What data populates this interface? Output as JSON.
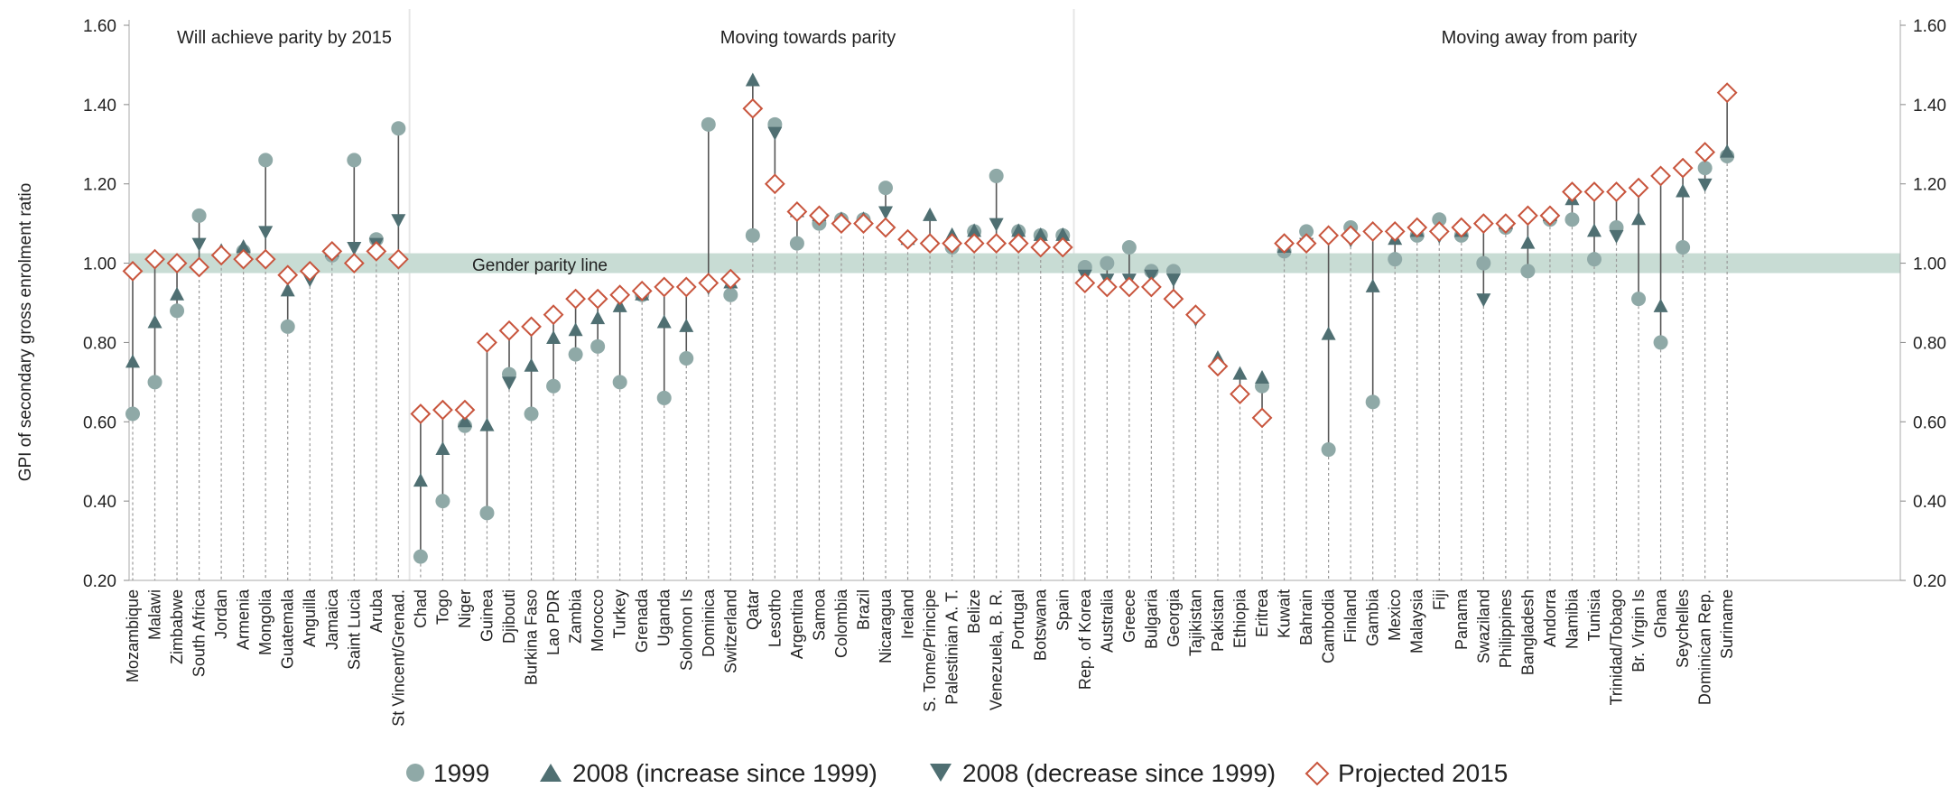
{
  "chart_data": {
    "type": "scatter",
    "ylabel": "GPI of secondary gross enrolment ratio",
    "ylim": [
      0.2,
      1.6
    ],
    "yticks": [
      "0.20",
      "0.40",
      "0.60",
      "0.80",
      "1.00",
      "1.20",
      "1.40",
      "1.60"
    ],
    "gender_parity_line_label": "Gender parity line",
    "parity_band": [
      0.975,
      1.025
    ],
    "legend": {
      "y1999": "1999",
      "inc2008": "2008 (increase since 1999)",
      "dec2008": "2008 (decrease since 1999)",
      "proj2015": "Projected 2015"
    },
    "colors": {
      "y1999": "#8fa9a7",
      "y2008": "#4f6f72",
      "proj2015": "#c8553d",
      "band": "#c8dcd4",
      "stem": "#555555",
      "dotted": "#999999"
    },
    "groups": [
      {
        "title": "Will achieve parity by 2015",
        "countries": [
          {
            "name": "Mozambique",
            "y1999": 0.62,
            "y2008": 0.75,
            "y2015": 0.98
          },
          {
            "name": "Malawi",
            "y1999": 0.7,
            "y2008": 0.85,
            "y2015": 1.01
          },
          {
            "name": "Zimbabwe",
            "y1999": 0.88,
            "y2008": 0.92,
            "y2015": 1.0
          },
          {
            "name": "South Africa",
            "y1999": 1.12,
            "y2008": 1.05,
            "y2015": 0.99
          },
          {
            "name": "Jordan",
            "y1999": 1.02,
            "y2008": 1.03,
            "y2015": 1.02
          },
          {
            "name": "Armenia",
            "y1999": 1.03,
            "y2008": 1.04,
            "y2015": 1.01
          },
          {
            "name": "Mongolia",
            "y1999": 1.26,
            "y2008": 1.08,
            "y2015": 1.01
          },
          {
            "name": "Guatemala",
            "y1999": 0.84,
            "y2008": 0.93,
            "y2015": 0.97
          },
          {
            "name": "Anguilla",
            "y1999": 0.98,
            "y2008": 0.96,
            "y2015": 0.98
          },
          {
            "name": "Jamaica",
            "y1999": 1.02,
            "y2008": 1.03,
            "y2015": 1.03
          },
          {
            "name": "Saint Lucia",
            "y1999": 1.26,
            "y2008": 1.04,
            "y2015": 1.0
          },
          {
            "name": "Aruba",
            "y1999": 1.06,
            "y2008": 1.05,
            "y2015": 1.03
          },
          {
            "name": "St Vincent/Grenad.",
            "y1999": 1.34,
            "y2008": 1.11,
            "y2015": 1.01
          }
        ]
      },
      {
        "title": "Moving towards parity",
        "countries": [
          {
            "name": "Chad",
            "y1999": 0.26,
            "y2008": 0.45,
            "y2015": 0.62
          },
          {
            "name": "Togo",
            "y1999": 0.4,
            "y2008": 0.53,
            "y2015": 0.63
          },
          {
            "name": "Niger",
            "y1999": 0.59,
            "y2008": 0.6,
            "y2015": 0.63
          },
          {
            "name": "Guinea",
            "y1999": 0.37,
            "y2008": 0.59,
            "y2015": 0.8
          },
          {
            "name": "Djibouti",
            "y1999": 0.72,
            "y2008": 0.7,
            "y2015": 0.83
          },
          {
            "name": "Burkina Faso",
            "y1999": 0.62,
            "y2008": 0.74,
            "y2015": 0.84
          },
          {
            "name": "Lao PDR",
            "y1999": 0.69,
            "y2008": 0.81,
            "y2015": 0.87
          },
          {
            "name": "Zambia",
            "y1999": 0.77,
            "y2008": 0.83,
            "y2015": 0.91
          },
          {
            "name": "Morocco",
            "y1999": 0.79,
            "y2008": 0.86,
            "y2015": 0.91
          },
          {
            "name": "Turkey",
            "y1999": 0.7,
            "y2008": 0.89,
            "y2015": 0.92
          },
          {
            "name": "Grenada",
            "y1999": 0.92,
            "y2008": 0.92,
            "y2015": 0.93
          },
          {
            "name": "Uganda",
            "y1999": 0.66,
            "y2008": 0.85,
            "y2015": 0.94
          },
          {
            "name": "Solomon Is",
            "y1999": 0.76,
            "y2008": 0.84,
            "y2015": 0.94
          },
          {
            "name": "Dominica",
            "y1999": 1.35,
            "y2008": 0.94,
            "y2015": 0.95
          },
          {
            "name": "Switzerland",
            "y1999": 0.92,
            "y2008": 0.95,
            "y2015": 0.96
          },
          {
            "name": "Qatar",
            "y1999": 1.07,
            "y2008": 1.46,
            "y2015": 1.39
          },
          {
            "name": "Lesotho",
            "y1999": 1.35,
            "y2008": 1.33,
            "y2015": 1.2
          },
          {
            "name": "Argentina",
            "y1999": 1.05,
            "y2008": 1.13,
            "y2015": 1.13
          },
          {
            "name": "Samoa",
            "y1999": 1.1,
            "y2008": 1.12,
            "y2015": 1.12
          },
          {
            "name": "Colombia",
            "y1999": 1.11,
            "y2008": 1.11,
            "y2015": 1.1
          },
          {
            "name": "Brazil",
            "y1999": 1.11,
            "y2008": 1.11,
            "y2015": 1.1
          },
          {
            "name": "Nicaragua",
            "y1999": 1.19,
            "y2008": 1.13,
            "y2015": 1.09
          },
          {
            "name": "Ireland",
            "y1999": 1.06,
            "y2008": 1.06,
            "y2015": 1.06
          },
          {
            "name": "S. Tome/Principe",
            "y1999": 1.05,
            "y2008": 1.12,
            "y2015": 1.05
          },
          {
            "name": "Palestinian A. T.",
            "y1999": 1.04,
            "y2008": 1.07,
            "y2015": 1.05
          },
          {
            "name": "Belize",
            "y1999": 1.08,
            "y2008": 1.08,
            "y2015": 1.05
          },
          {
            "name": "Venezuela, B. R.",
            "y1999": 1.22,
            "y2008": 1.1,
            "y2015": 1.05
          },
          {
            "name": "Portugal",
            "y1999": 1.08,
            "y2008": 1.08,
            "y2015": 1.05
          },
          {
            "name": "Botswana",
            "y1999": 1.07,
            "y2008": 1.07,
            "y2015": 1.04
          },
          {
            "name": "Spain",
            "y1999": 1.07,
            "y2008": 1.07,
            "y2015": 1.04
          }
        ]
      },
      {
        "title": "Moving away from parity",
        "countries": [
          {
            "name": "Rep. of Korea",
            "y1999": 0.99,
            "y2008": 0.97,
            "y2015": 0.95
          },
          {
            "name": "Australia",
            "y1999": 1.0,
            "y2008": 0.96,
            "y2015": 0.94
          },
          {
            "name": "Greece",
            "y1999": 1.04,
            "y2008": 0.96,
            "y2015": 0.94
          },
          {
            "name": "Bulgaria",
            "y1999": 0.98,
            "y2008": 0.97,
            "y2015": 0.94
          },
          {
            "name": "Georgia",
            "y1999": 0.98,
            "y2008": 0.96,
            "y2015": 0.91
          },
          {
            "name": "Tajikistan",
            "y1999": 0.87,
            "y2008": 0.86,
            "y2015": 0.87
          },
          {
            "name": "Pakistan",
            "y1999": 0.74,
            "y2008": 0.76,
            "y2015": 0.74
          },
          {
            "name": "Ethiopia",
            "y1999": 0.67,
            "y2008": 0.72,
            "y2015": 0.67
          },
          {
            "name": "Eritrea",
            "y1999": 0.69,
            "y2008": 0.71,
            "y2015": 0.61
          },
          {
            "name": "Kuwait",
            "y1999": 1.03,
            "y2008": 1.04,
            "y2015": 1.05
          },
          {
            "name": "Bahrain",
            "y1999": 1.08,
            "y2008": 1.05,
            "y2015": 1.05
          },
          {
            "name": "Cambodia",
            "y1999": 0.53,
            "y2008": 0.82,
            "y2015": 1.07
          },
          {
            "name": "Finland",
            "y1999": 1.09,
            "y2008": 1.06,
            "y2015": 1.07
          },
          {
            "name": "Gambia",
            "y1999": 0.65,
            "y2008": 0.94,
            "y2015": 1.08
          },
          {
            "name": "Mexico",
            "y1999": 1.01,
            "y2008": 1.06,
            "y2015": 1.08
          },
          {
            "name": "Malaysia",
            "y1999": 1.07,
            "y2008": 1.08,
            "y2015": 1.09
          },
          {
            "name": "Fiji",
            "y1999": 1.11,
            "y2008": 1.07,
            "y2015": 1.08
          },
          {
            "name": "Panama",
            "y1999": 1.07,
            "y2008": 1.08,
            "y2015": 1.09
          },
          {
            "name": "Swaziland",
            "y1999": 1.0,
            "y2008": 0.91,
            "y2015": 1.1
          },
          {
            "name": "Philippines",
            "y1999": 1.09,
            "y2008": 1.1,
            "y2015": 1.1
          },
          {
            "name": "Bangladesh",
            "y1999": 0.98,
            "y2008": 1.05,
            "y2015": 1.12
          },
          {
            "name": "Andorra",
            "y1999": 1.11,
            "y2008": 1.12,
            "y2015": 1.12
          },
          {
            "name": "Namibia",
            "y1999": 1.11,
            "y2008": 1.16,
            "y2015": 1.18
          },
          {
            "name": "Tunisia",
            "y1999": 1.01,
            "y2008": 1.08,
            "y2015": 1.18
          },
          {
            "name": "Trinidad/Tobago",
            "y1999": 1.09,
            "y2008": 1.07,
            "y2015": 1.18
          },
          {
            "name": "Br. Virgin Is",
            "y1999": 0.91,
            "y2008": 1.11,
            "y2015": 1.19
          },
          {
            "name": "Ghana",
            "y1999": 0.8,
            "y2008": 0.89,
            "y2015": 1.22
          },
          {
            "name": "Seychelles",
            "y1999": 1.04,
            "y2008": 1.18,
            "y2015": 1.24
          },
          {
            "name": "Dominican Rep.",
            "y1999": 1.24,
            "y2008": 1.2,
            "y2015": 1.28
          },
          {
            "name": "Suriname",
            "y1999": 1.27,
            "y2008": 1.28,
            "y2015": 1.43
          }
        ]
      }
    ]
  }
}
